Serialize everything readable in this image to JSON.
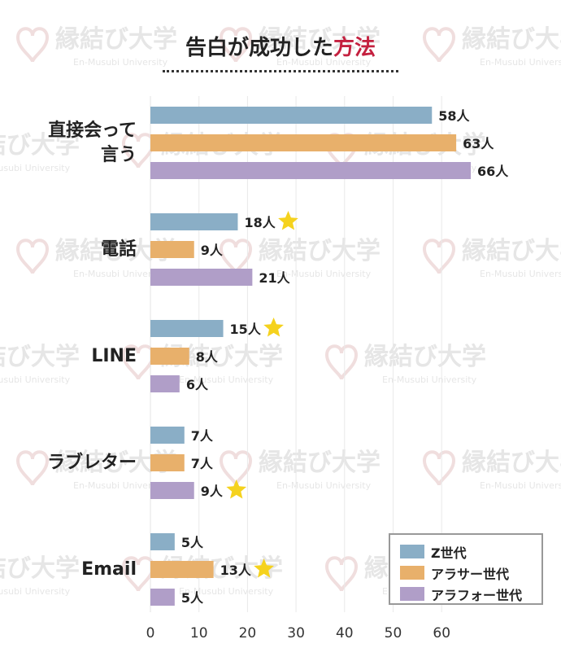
{
  "title": {
    "main": "告白が成功した",
    "accent": "方法"
  },
  "chart_data": {
    "type": "bar",
    "orientation": "horizontal",
    "categories": [
      "直接会って言う",
      "電話",
      "LINE",
      "ラブレター",
      "Email"
    ],
    "series": [
      {
        "name": "Z世代",
        "color": "#8aaec6",
        "values": [
          58,
          18,
          15,
          7,
          5
        ]
      },
      {
        "name": "アラサー世代",
        "color": "#e8b06b",
        "values": [
          63,
          9,
          8,
          7,
          13
        ]
      },
      {
        "name": "アラフォー世代",
        "color": "#b09ec8",
        "values": [
          66,
          21,
          6,
          9,
          5
        ]
      }
    ],
    "value_unit": "人",
    "xlim": [
      0,
      66
    ],
    "xticks": [
      0,
      10,
      20,
      30,
      40,
      50,
      60
    ],
    "grid": true,
    "legend_position": "bottom-right",
    "highlights": [
      {
        "category": "電話",
        "series": "Z世代"
      },
      {
        "category": "LINE",
        "series": "Z世代"
      },
      {
        "category": "ラブレター",
        "series": "アラフォー世代"
      },
      {
        "category": "Email",
        "series": "アラサー世代"
      }
    ],
    "star_color": "#f5d21e"
  },
  "watermark": {
    "main": "縁結び大学",
    "sub": "En-Musubi University",
    "color": "#e6e6e6"
  }
}
